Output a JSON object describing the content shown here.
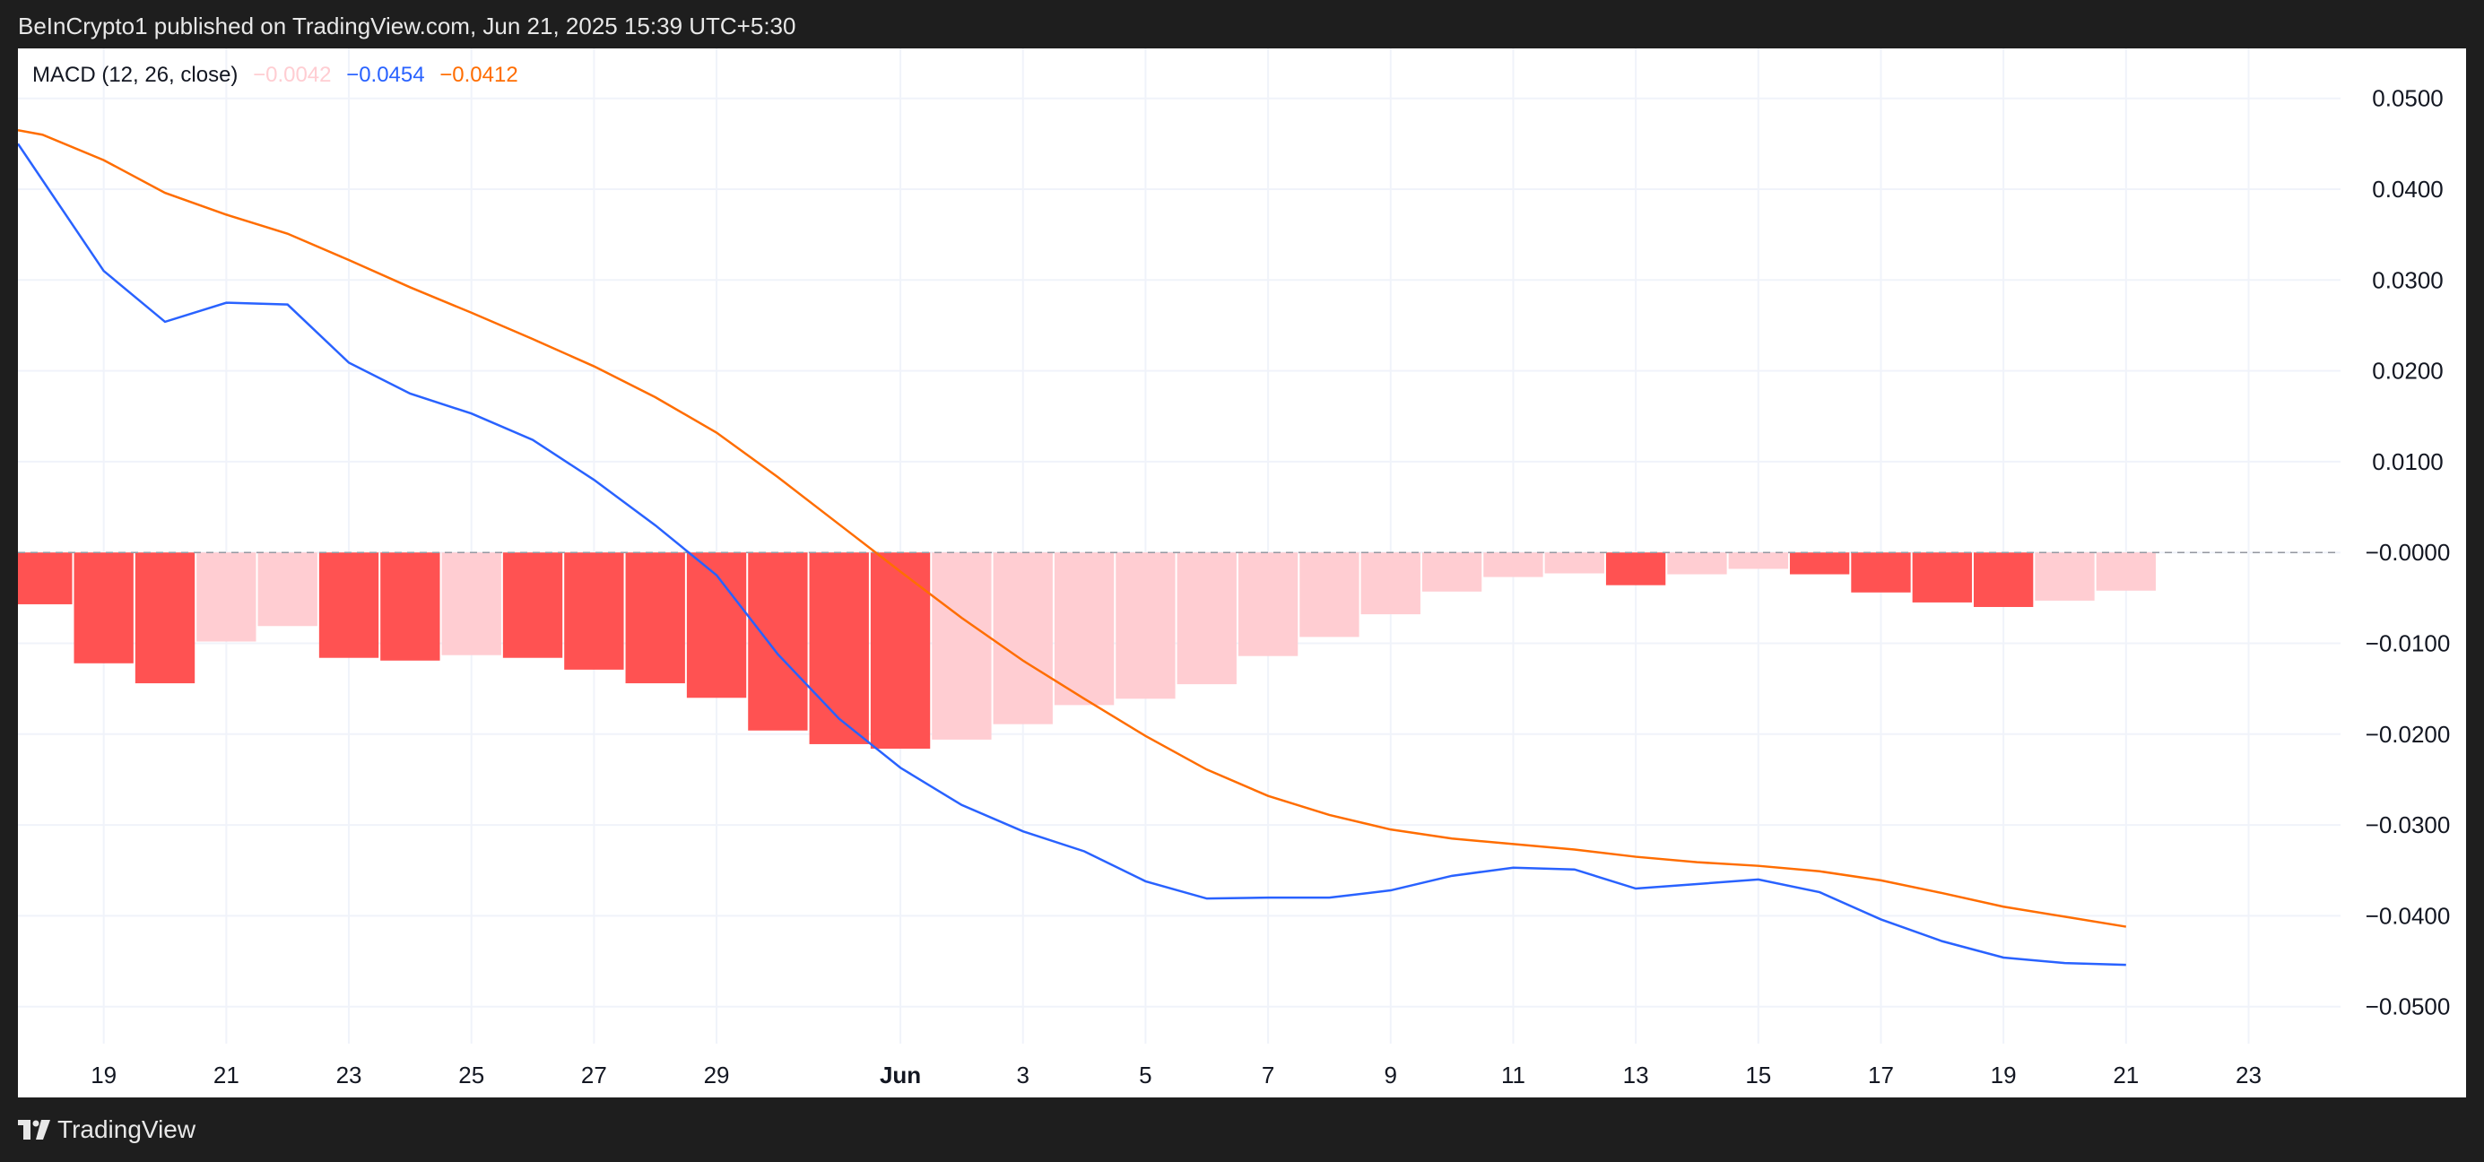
{
  "header": {
    "attribution": "BeInCrypto1 published on TradingView.com, Jun 21, 2025 15:39 UTC+5:30"
  },
  "legend": {
    "indicator": "MACD (12, 26, close)",
    "histogram_value": "−0.0042",
    "macd_value": "−0.0454",
    "signal_value": "−0.0412"
  },
  "footer": {
    "brand": "TradingView"
  },
  "colors": {
    "macd_line": "#2962ff",
    "signal_line": "#ff6d00",
    "hist_strong": "#ff5252",
    "hist_weak": "#ffcdd2",
    "grid": "#f0f3fa",
    "axis_text": "#131722"
  },
  "chart_data": {
    "type": "line+bar",
    "title": "MACD (12, 26, close)",
    "x_tick_labels": [
      "19",
      "21",
      "23",
      "25",
      "27",
      "29",
      "Jun",
      "3",
      "5",
      "7",
      "9",
      "11",
      "13",
      "15",
      "17",
      "19",
      "21",
      "23"
    ],
    "x_tick_index": [
      1,
      3,
      5,
      7,
      9,
      11,
      14,
      16,
      18,
      20,
      22,
      24,
      26,
      28,
      30,
      32,
      34,
      36
    ],
    "y_tick_labels": [
      "0.0500",
      "0.0400",
      "0.0300",
      "0.0200",
      "0.0100",
      "−0.0000",
      "−0.0100",
      "−0.0200",
      "−0.0300",
      "−0.0400",
      "−0.0500"
    ],
    "y_tick_values": [
      0.05,
      0.04,
      0.03,
      0.02,
      0.01,
      0,
      -0.01,
      -0.02,
      -0.03,
      -0.04,
      -0.05
    ],
    "ylim": [
      -0.06,
      0.0555
    ],
    "xlim": [
      -0.4,
      37.5
    ],
    "histogram": {
      "name": "Histogram",
      "values": [
        -0.0057,
        -0.0122,
        -0.0144,
        -0.0098,
        -0.0081,
        -0.0116,
        -0.0119,
        -0.0113,
        -0.0116,
        -0.0129,
        -0.0144,
        -0.016,
        -0.0196,
        -0.0211,
        -0.0216,
        -0.0206,
        -0.0189,
        -0.0168,
        -0.0161,
        -0.0145,
        -0.0114,
        -0.0093,
        -0.0068,
        -0.0043,
        -0.0027,
        -0.0023,
        -0.0036,
        -0.0024,
        -0.0018,
        -0.0024,
        -0.0044,
        -0.0055,
        -0.006,
        -0.0053,
        -0.0042
      ],
      "color_type": [
        "strong",
        "strong",
        "strong",
        "weak",
        "weak",
        "strong",
        "strong",
        "weak",
        "strong",
        "strong",
        "strong",
        "strong",
        "strong",
        "strong",
        "strong",
        "weak",
        "weak",
        "weak",
        "weak",
        "weak",
        "weak",
        "weak",
        "weak",
        "weak",
        "weak",
        "weak",
        "strong",
        "weak",
        "weak",
        "strong",
        "strong",
        "strong",
        "strong",
        "weak",
        "weak"
      ]
    },
    "series": [
      {
        "name": "MACD",
        "x": [
          -0.4,
          1,
          2,
          3,
          4,
          5,
          6,
          7,
          8,
          9,
          10,
          11,
          12,
          13,
          14,
          15,
          16,
          17,
          18,
          19,
          20,
          21,
          22,
          23,
          24,
          25,
          26,
          27,
          28,
          29,
          30,
          31,
          32,
          33,
          34
        ],
        "values": [
          0.045,
          0.031,
          0.0254,
          0.0275,
          0.0273,
          0.0209,
          0.0175,
          0.0153,
          0.0124,
          0.008,
          0.003,
          -0.0025,
          -0.0112,
          -0.0183,
          -0.0237,
          -0.0278,
          -0.0307,
          -0.0329,
          -0.0362,
          -0.0381,
          -0.038,
          -0.038,
          -0.0372,
          -0.0356,
          -0.0347,
          -0.0349,
          -0.037,
          -0.0365,
          -0.036,
          -0.0374,
          -0.0404,
          -0.0428,
          -0.0446,
          -0.0452,
          -0.0454
        ]
      },
      {
        "name": "Signal",
        "x": [
          -0.4,
          0,
          1,
          2,
          3,
          4,
          5,
          6,
          7,
          8,
          9,
          10,
          11,
          12,
          13,
          14,
          15,
          16,
          17,
          18,
          19,
          20,
          21,
          22,
          23,
          24,
          25,
          26,
          27,
          28,
          29,
          30,
          31,
          32,
          33,
          34
        ],
        "values": [
          0.0465,
          0.046,
          0.0432,
          0.0396,
          0.0372,
          0.0351,
          0.0322,
          0.0292,
          0.0264,
          0.0235,
          0.0205,
          0.0171,
          0.0132,
          0.0083,
          0.0031,
          -0.0021,
          -0.0072,
          -0.0119,
          -0.0161,
          -0.0202,
          -0.0239,
          -0.0268,
          -0.0289,
          -0.0305,
          -0.0315,
          -0.0321,
          -0.0327,
          -0.0335,
          -0.0341,
          -0.0345,
          -0.0351,
          -0.0361,
          -0.0375,
          -0.039,
          -0.0401,
          -0.0412
        ]
      }
    ],
    "zero_line": "dashed"
  }
}
